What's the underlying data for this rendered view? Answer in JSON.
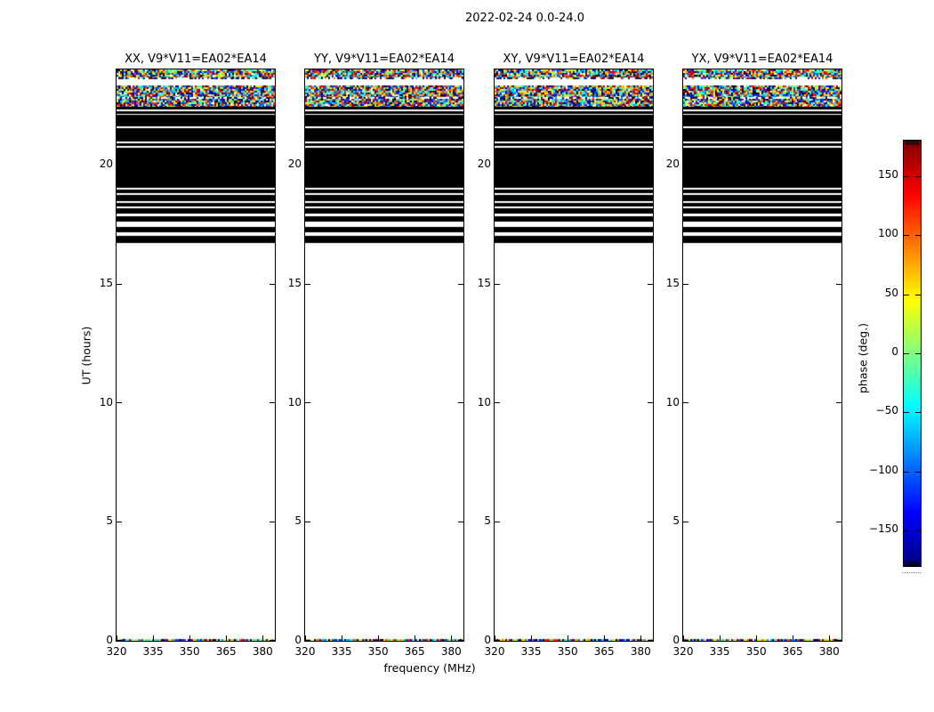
{
  "chart_data": {
    "type": "heatmap",
    "title": "2022-02-24 0.0-24.0",
    "xlabel": "frequency (MHz)",
    "ylabel": "UT (hours)",
    "colorbar_label": "phase (deg.)",
    "colormap": "jet",
    "x_range": [
      320,
      385
    ],
    "x_ticks": [
      320,
      335,
      350,
      365,
      380
    ],
    "x_tick_labels": [
      "320",
      "335",
      "350",
      "365",
      "380"
    ],
    "y_range": [
      0,
      24
    ],
    "y_ticks": [
      0,
      5,
      10,
      15,
      20
    ],
    "y_tick_labels": [
      "0",
      "5",
      "10",
      "15",
      "20"
    ],
    "colorbar_range": [
      -180,
      180
    ],
    "colorbar_ticks": [
      150,
      100,
      50,
      0,
      -50,
      -100,
      -150
    ],
    "colorbar_tick_labels": [
      "150",
      "100",
      "50",
      "0",
      "−50",
      "−100",
      "−150"
    ],
    "panels": [
      {
        "title": "XX, V9*V11=EA02*EA14"
      },
      {
        "title": "YY, V9*V11=EA02*EA14"
      },
      {
        "title": "XY, V9*V11=EA02*EA14"
      },
      {
        "title": "YX, V9*V11=EA02*EA14"
      }
    ],
    "bands": [
      {
        "type": "noise",
        "from": 23.67,
        "to": 24.0
      },
      {
        "type": "sparse",
        "from": 23.6,
        "to": 23.67
      },
      {
        "type": "noise",
        "from": 22.84,
        "to": 23.32
      },
      {
        "type": "sparse",
        "from": 22.76,
        "to": 22.84
      },
      {
        "type": "noise",
        "from": 22.43,
        "to": 22.76
      },
      {
        "type": "black",
        "from": 22.32,
        "to": 22.43
      },
      {
        "type": "black",
        "from": 22.14,
        "to": 22.25
      },
      {
        "type": "black",
        "from": 21.61,
        "to": 22.1
      },
      {
        "type": "black",
        "from": 20.97,
        "to": 21.53
      },
      {
        "type": "black",
        "from": 20.78,
        "to": 20.9
      },
      {
        "type": "black",
        "from": 19.03,
        "to": 20.71
      },
      {
        "type": "black",
        "from": 18.8,
        "to": 18.95
      },
      {
        "type": "black",
        "from": 18.47,
        "to": 18.73
      },
      {
        "type": "black",
        "from": 18.24,
        "to": 18.39
      },
      {
        "type": "black",
        "from": 17.94,
        "to": 18.17
      },
      {
        "type": "black",
        "from": 17.61,
        "to": 17.84
      },
      {
        "type": "black",
        "from": 17.16,
        "to": 17.38
      },
      {
        "type": "black",
        "from": 16.71,
        "to": 17.01
      },
      {
        "type": "noise",
        "from": 0.0,
        "to": 0.09
      }
    ],
    "colors": {
      "frame": "#000000",
      "background": "#ffffff",
      "flagged": "#000000"
    }
  }
}
